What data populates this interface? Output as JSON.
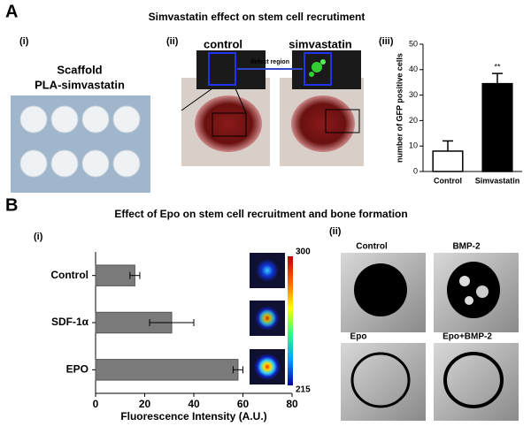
{
  "panel_a": {
    "letter": "A",
    "title": "Simvastatin effect on stem cell recrutiment",
    "i": {
      "label": "(i)",
      "caption": [
        "Scaffold",
        "PLA-simvastatin"
      ]
    },
    "ii": {
      "label": "(ii)",
      "control": "control",
      "treated": "simvastatin",
      "inset": "defect region"
    },
    "iii": {
      "label": "(iii)"
    }
  },
  "panel_b": {
    "letter": "B",
    "title": "Effect of Epo on stem cell recruitment and bone formation",
    "i": {
      "label": "(i)",
      "colorbar": {
        "max": 300,
        "min": 215
      }
    },
    "ii": {
      "label": "(ii)",
      "images": [
        "Control",
        "BMP-2",
        "Epo",
        "Epo+BMP-2"
      ]
    }
  },
  "chart_data": [
    {
      "type": "bar",
      "orientation": "vertical",
      "ylabel": "number of GFP positive cells",
      "categories": [
        "Control",
        "Simvastatin"
      ],
      "values": [
        8,
        34.5
      ],
      "errors": [
        4,
        4
      ],
      "colors": [
        "#ffffff",
        "#000000"
      ],
      "annotations": [
        "**"
      ],
      "ylim": [
        0,
        50
      ],
      "yticks": [
        0,
        10,
        20,
        30,
        40,
        50
      ]
    },
    {
      "type": "bar",
      "orientation": "horizontal",
      "xlabel": "Fluorescence Intensity (A.U.)",
      "categories": [
        "Control",
        "SDF-1α",
        "EPO"
      ],
      "values": [
        16,
        31,
        58
      ],
      "errors": [
        2,
        9,
        2
      ],
      "color": "#7a7a7a",
      "xlim": [
        0,
        80
      ],
      "xticks": [
        0,
        20,
        40,
        60,
        80
      ]
    }
  ]
}
